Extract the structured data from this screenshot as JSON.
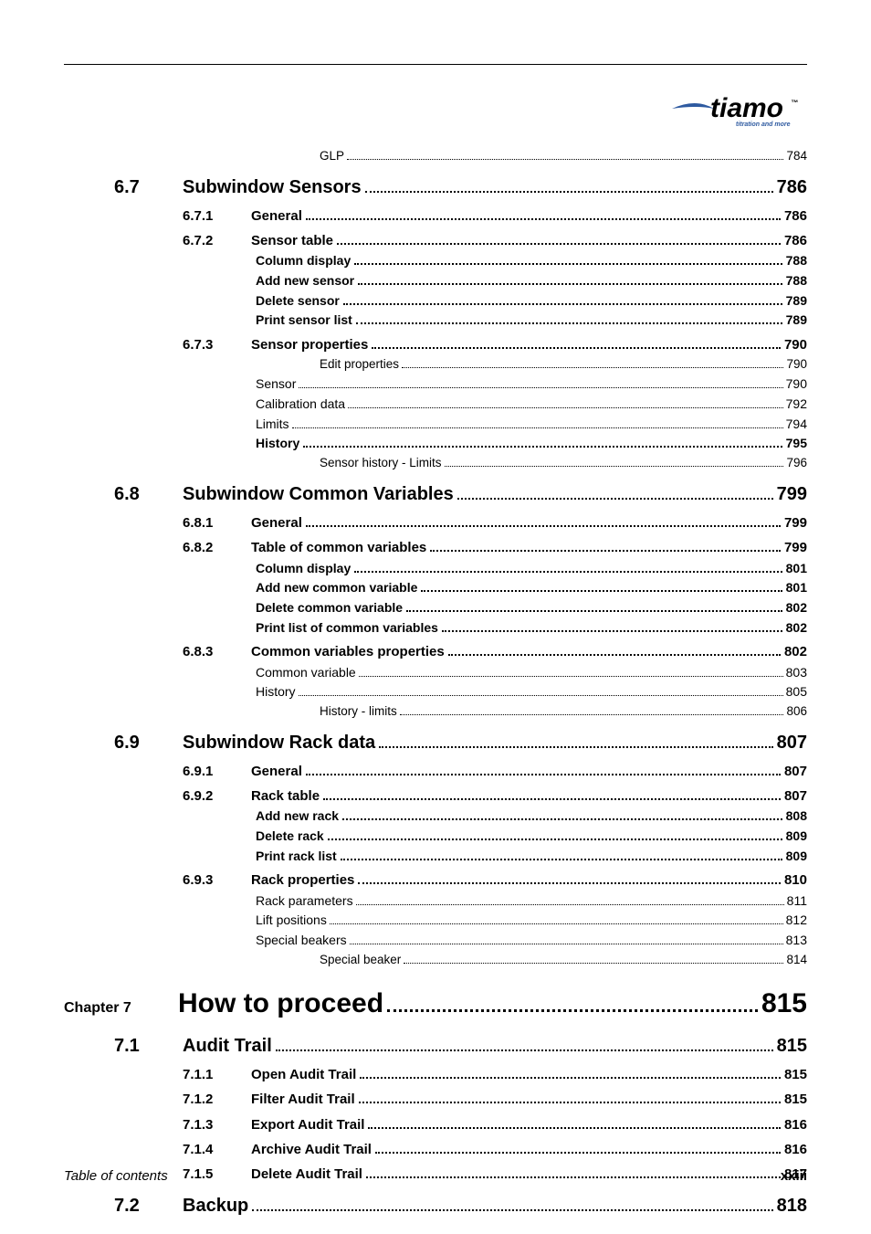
{
  "brand": {
    "name": "tiamo",
    "tm": "™",
    "tagline": "titration and more"
  },
  "footer": {
    "left": "Table of contents",
    "right": "xxiii"
  },
  "toc": [
    {
      "lvl": "l4n",
      "indent": 4,
      "label": "GLP",
      "page": "784"
    },
    {
      "lvl": "section",
      "indent": 1,
      "num": "6.7",
      "label": "Subwindow Sensors",
      "page": "786"
    },
    {
      "lvl": "sub",
      "indent": 2,
      "num": "6.7.1",
      "label": "General",
      "page": "786"
    },
    {
      "lvl": "sub",
      "indent": 2,
      "num": "6.7.2",
      "label": "Sensor table",
      "page": "786"
    },
    {
      "lvl": "l3b",
      "indent": 3,
      "label": "Column display",
      "page": "788"
    },
    {
      "lvl": "l3b",
      "indent": 3,
      "label": "Add new sensor",
      "page": "788"
    },
    {
      "lvl": "l3b",
      "indent": 3,
      "label": "Delete sensor",
      "page": "789"
    },
    {
      "lvl": "l3b",
      "indent": 3,
      "label": "Print sensor list",
      "page": "789"
    },
    {
      "lvl": "sub",
      "indent": 2,
      "num": "6.7.3",
      "label": "Sensor properties",
      "page": "790"
    },
    {
      "lvl": "l4n",
      "indent": 4,
      "label": "Edit properties",
      "page": "790"
    },
    {
      "lvl": "l3n",
      "indent": 3,
      "label": "Sensor",
      "page": "790"
    },
    {
      "lvl": "l3n",
      "indent": 3,
      "label": "Calibration data",
      "page": "792"
    },
    {
      "lvl": "l3n",
      "indent": 3,
      "label": "Limits",
      "page": "794"
    },
    {
      "lvl": "l3b",
      "indent": 3,
      "label": "History",
      "page": "795"
    },
    {
      "lvl": "l4n",
      "indent": 4,
      "label": "Sensor history - Limits",
      "page": "796"
    },
    {
      "lvl": "section",
      "indent": 1,
      "num": "6.8",
      "label": "Subwindow Common Variables",
      "page": "799"
    },
    {
      "lvl": "sub",
      "indent": 2,
      "num": "6.8.1",
      "label": "General",
      "page": "799"
    },
    {
      "lvl": "sub",
      "indent": 2,
      "num": "6.8.2",
      "label": "Table of common variables",
      "page": "799"
    },
    {
      "lvl": "l3b",
      "indent": 3,
      "label": "Column display",
      "page": "801"
    },
    {
      "lvl": "l3b",
      "indent": 3,
      "label": "Add new common variable",
      "page": "801"
    },
    {
      "lvl": "l3b",
      "indent": 3,
      "label": "Delete common variable",
      "page": "802"
    },
    {
      "lvl": "l3b",
      "indent": 3,
      "label": "Print list of common variables",
      "page": "802"
    },
    {
      "lvl": "sub",
      "indent": 2,
      "num": "6.8.3",
      "label": "Common variables properties",
      "page": "802"
    },
    {
      "lvl": "l3n",
      "indent": 3,
      "label": "Common variable",
      "page": "803"
    },
    {
      "lvl": "l3n",
      "indent": 3,
      "label": "History",
      "page": "805"
    },
    {
      "lvl": "l4n",
      "indent": 4,
      "label": "History - limits",
      "page": "806"
    },
    {
      "lvl": "section",
      "indent": 1,
      "num": "6.9",
      "label": "Subwindow Rack data",
      "page": "807"
    },
    {
      "lvl": "sub",
      "indent": 2,
      "num": "6.9.1",
      "label": "General",
      "page": "807"
    },
    {
      "lvl": "sub",
      "indent": 2,
      "num": "6.9.2",
      "label": "Rack table",
      "page": "807"
    },
    {
      "lvl": "l3b",
      "indent": 3,
      "label": "Add new rack",
      "page": "808"
    },
    {
      "lvl": "l3b",
      "indent": 3,
      "label": "Delete rack",
      "page": "809"
    },
    {
      "lvl": "l3b",
      "indent": 3,
      "label": "Print rack list",
      "page": "809"
    },
    {
      "lvl": "sub",
      "indent": 2,
      "num": "6.9.3",
      "label": "Rack properties",
      "page": "810"
    },
    {
      "lvl": "l3n",
      "indent": 3,
      "label": "Rack parameters",
      "page": "811"
    },
    {
      "lvl": "l3n",
      "indent": 3,
      "label": "Lift positions",
      "page": "812"
    },
    {
      "lvl": "l3n",
      "indent": 3,
      "label": "Special beakers",
      "page": "813"
    },
    {
      "lvl": "l4n",
      "indent": 4,
      "label": "Special beaker",
      "page": "814"
    },
    {
      "lvl": "chapter",
      "indent": 0,
      "num": "Chapter 7",
      "label": "How to proceed",
      "page": "815"
    },
    {
      "lvl": "section",
      "indent": 1,
      "num": "7.1",
      "label": "Audit Trail",
      "page": "815"
    },
    {
      "lvl": "sub",
      "indent": 2,
      "num": "7.1.1",
      "label": "Open Audit Trail",
      "page": "815"
    },
    {
      "lvl": "sub",
      "indent": 2,
      "num": "7.1.2",
      "label": "Filter Audit Trail",
      "page": "815"
    },
    {
      "lvl": "sub",
      "indent": 2,
      "num": "7.1.3",
      "label": "Export Audit Trail",
      "page": "816"
    },
    {
      "lvl": "sub",
      "indent": 2,
      "num": "7.1.4",
      "label": "Archive Audit Trail",
      "page": "816"
    },
    {
      "lvl": "sub",
      "indent": 2,
      "num": "7.1.5",
      "label": "Delete Audit Trail",
      "page": "817"
    },
    {
      "lvl": "section",
      "indent": 1,
      "num": "7.2",
      "label": "Backup",
      "page": "818"
    }
  ]
}
